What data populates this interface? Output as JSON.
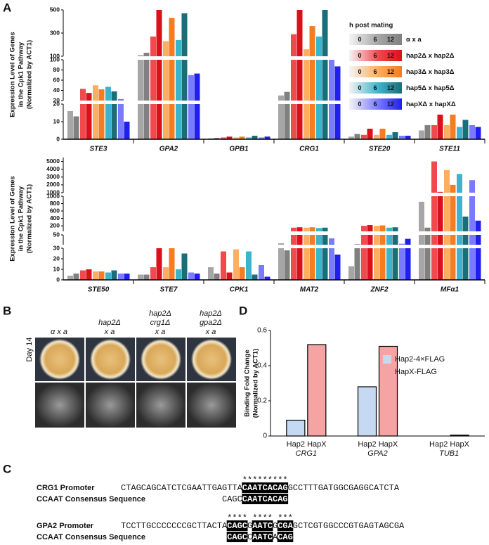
{
  "panel_labels": [
    "A",
    "B",
    "C",
    "D"
  ],
  "chart_data": [
    {
      "type": "bar",
      "y_label": [
        "Expression Level of Genes",
        "in the Cpk1 Pathway",
        "(Normalized by ACT1)"
      ],
      "categories": [
        "STE3",
        "GPA2",
        "GPB1",
        "CRG1",
        "STE20",
        "STE11"
      ],
      "y_segments": [
        {
          "ylim": [
            0,
            20
          ],
          "yticks": [
            0,
            10,
            20
          ]
        },
        {
          "ylim": [
            20,
            100
          ],
          "yticks": [
            20,
            40,
            60,
            80,
            100
          ]
        },
        {
          "ylim": [
            100,
            500
          ],
          "yticks": [
            100,
            300,
            500
          ]
        }
      ],
      "legend_title": "h post mating",
      "legend_timepoints": [
        0,
        6,
        12
      ],
      "series": [
        {
          "name": "α x a",
          "colors": [
            "#a6a6a6",
            "#808080"
          ],
          "values": [
            [
              16,
              13
            ],
            [
              110,
              130
            ],
            [
              0.5,
              0.8
            ],
            [
              30,
              37
            ],
            [
              1.5,
              3
            ],
            [
              5,
              8
            ]
          ]
        },
        {
          "name": "hap2Δ x hap2Δ",
          "colors": [
            "#f04a4e",
            "#dc101a"
          ],
          "values": [
            [
              43,
              35
            ],
            [
              270,
              500
            ],
            [
              1,
              1.5
            ],
            [
              290,
              500
            ],
            [
              2.5,
              6
            ],
            [
              8,
              14
            ]
          ]
        },
        {
          "name": "hap3Δ x hap3Δ",
          "colors": [
            "#fdae61",
            "#f57c20"
          ],
          "values": [
            [
              50,
              42
            ],
            [
              230,
              430
            ],
            [
              1,
              1.5
            ],
            [
              160,
              360
            ],
            [
              2.5,
              6
            ],
            [
              8,
              14
            ]
          ]
        },
        {
          "name": "hap5Δ x hap5Δ",
          "colors": [
            "#3cb4cc",
            "#1a6e7a"
          ],
          "values": [
            [
              47,
              38
            ],
            [
              240,
              470
            ],
            [
              1,
              2
            ],
            [
              270,
              500
            ],
            [
              2.5,
              4
            ],
            [
              7,
              11
            ]
          ]
        },
        {
          "name": "hapXΔ x hapXΔ",
          "colors": [
            "#7a7aff",
            "#1f1fee"
          ],
          "values": [
            [
              23,
              10
            ],
            [
              70,
              73
            ],
            [
              1,
              1.5
            ],
            [
              100,
              87
            ],
            [
              2,
              2
            ],
            [
              8,
              7
            ]
          ]
        }
      ]
    },
    {
      "type": "bar",
      "y_label": [
        "Expression Level of Genes",
        "in the Cpk1 Pathway",
        "(Normalized by ACT1)"
      ],
      "categories": [
        "STE50",
        "STE7",
        "CPK1",
        "MAT2",
        "ZNF2",
        "MFα1"
      ],
      "y_segments": [
        {
          "ylim": [
            0,
            30
          ],
          "yticks": [
            0,
            10,
            20,
            30
          ]
        },
        {
          "ylim": [
            30,
            50
          ],
          "yticks": [
            50
          ]
        },
        {
          "ylim": [
            50,
            1000
          ],
          "yticks": [
            200,
            400,
            600,
            800,
            1000
          ]
        },
        {
          "ylim": [
            1000,
            5500
          ],
          "yticks": [
            1000,
            2000,
            3000,
            4000,
            5000
          ]
        }
      ],
      "series": [
        {
          "colors": [
            "#a6a6a6",
            "#808080"
          ],
          "values": [
            [
              4,
              6
            ],
            [
              5,
              5
            ],
            [
              12,
              6
            ],
            [
              33,
              28
            ],
            [
              13,
              31
            ],
            [
              850,
              150
            ]
          ]
        },
        {
          "colors": [
            "#f04a4e",
            "#dc101a"
          ],
          "values": [
            [
              9,
              10
            ],
            [
              12,
              30
            ],
            [
              27,
              7
            ],
            [
              150,
              160
            ],
            [
              200,
              220
            ],
            [
              5000,
              1100
            ]
          ]
        },
        {
          "colors": [
            "#fdae61",
            "#f57c20"
          ],
          "values": [
            [
              8,
              8
            ],
            [
              12,
              30
            ],
            [
              29,
              12
            ],
            [
              150,
              160
            ],
            [
              200,
              210
            ],
            [
              3900,
              2000
            ]
          ]
        },
        {
          "colors": [
            "#3cb4cc",
            "#1a6e7a"
          ],
          "values": [
            [
              7,
              9
            ],
            [
              10,
              25
            ],
            [
              27,
              5
            ],
            [
              140,
              150
            ],
            [
              150,
              160
            ],
            [
              3400,
              450
            ]
          ]
        },
        {
          "colors": [
            "#7a7aff",
            "#1f1fee"
          ],
          "values": [
            [
              6,
              6
            ],
            [
              7,
              6
            ],
            [
              14,
              3
            ],
            [
              43,
              24
            ],
            [
              32,
              42
            ],
            [
              2600,
              340
            ]
          ]
        }
      ]
    },
    {
      "type": "bar",
      "y_label": [
        "Binding Fold Change",
        "(Normalized by ACT1)"
      ],
      "categories": [
        "CRG1",
        "GPA2",
        "TUB1"
      ],
      "bar_labels": [
        "Hap2",
        "HapX"
      ],
      "ylim": [
        0,
        0.6
      ],
      "yticks": [
        0,
        0.2,
        0.4,
        0.6
      ],
      "series": [
        {
          "name": "Hap2-4×FLAG",
          "color": "#c5daf2",
          "values": [
            0.09,
            0.28,
            0
          ]
        },
        {
          "name": "HapX-FLAG",
          "color": "#f5a3a3",
          "values": [
            0.52,
            0.51,
            0.005
          ]
        }
      ]
    }
  ],
  "panel_b": {
    "side_label": "Day 14",
    "columns": [
      [
        "α x a"
      ],
      [
        "hap2Δ",
        "x a"
      ],
      [
        "hap2Δ",
        "crg1Δ",
        "x a"
      ],
      [
        "hap2Δ",
        "gpa2Δ",
        "x a"
      ]
    ]
  },
  "panel_c": {
    "rows": [
      {
        "promoter_label": "CRG1 Promoter",
        "consensus_label": "CCAAT Consensus Sequence",
        "promoter": [
          {
            "text": "CTAGCAGCATCTCGAATTGAGTTA",
            "highlight": false
          },
          {
            "text": "CAATCACAG",
            "highlight": true,
            "stars": "*********"
          },
          {
            "text": "GCCTTTGATGGCGAGGCATCTA",
            "highlight": false
          }
        ],
        "consensus": [
          {
            "text": "CAGC",
            "highlight": false
          },
          {
            "text": "CAATCACAG",
            "highlight": true
          }
        ]
      },
      {
        "promoter_label": "GPA2 Promoter",
        "consensus_label": "CCAAT Consensus Sequence",
        "promoter": [
          {
            "text": "TCCTTGCCCCCCCGCTTACTA",
            "highlight": false
          },
          {
            "text": "CAGC",
            "highlight": true,
            "stars": "****"
          },
          {
            "text": "G",
            "highlight": false
          },
          {
            "text": "AATC",
            "highlight": true,
            "stars": "****"
          },
          {
            "text": "G",
            "highlight": false
          },
          {
            "text": "CGA",
            "highlight": true,
            "stars": "***"
          },
          {
            "text": "GCTCGTGGCCCGTGAGTAGCGA",
            "highlight": false
          }
        ],
        "consensus": [
          {
            "text": "CAGC",
            "highlight": true
          },
          {
            "text": "C",
            "highlight": false
          },
          {
            "text": "AATC",
            "highlight": true
          },
          {
            "text": "A",
            "highlight": false
          },
          {
            "text": "CAG",
            "highlight": true
          }
        ]
      }
    ]
  }
}
